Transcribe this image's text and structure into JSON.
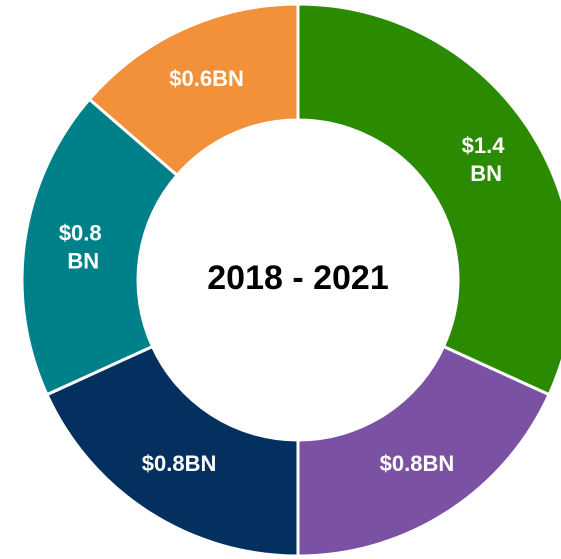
{
  "chart_data": {
    "type": "donut",
    "center_text": "2018 - 2021",
    "categories": [
      null,
      null,
      null,
      null,
      null
    ],
    "values": [
      1.4,
      0.8,
      0.8,
      0.8,
      0.6
    ],
    "value_labels": [
      "$1.4 BN",
      "$0.8BN",
      "$0.8BN",
      "$0.8 BN",
      "$0.6BN"
    ],
    "colors": [
      "#2a8a00",
      "#7b52a3",
      "#04305f",
      "#00818a",
      "#f3913a"
    ]
  }
}
